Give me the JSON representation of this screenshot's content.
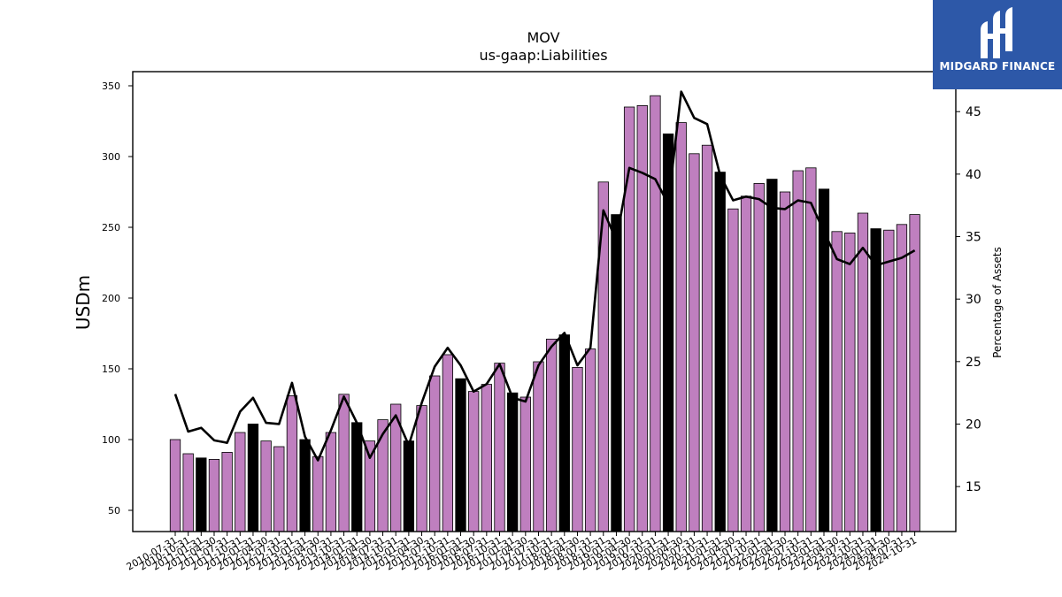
{
  "brand": {
    "name": "MIDGARD FINANCE",
    "logo_color": "#2d58a8"
  },
  "chart_data": {
    "type": "bar",
    "title": "MOV",
    "subtitle": "us-gaap:Liabilities",
    "ylabel": "USDm",
    "y2label": "Percentage of Assets",
    "ylim": [
      35,
      360
    ],
    "y2lim": [
      11.4,
      48.2
    ],
    "yticks": [
      50,
      100,
      150,
      200,
      250,
      300,
      350
    ],
    "y2ticks": [
      15,
      20,
      25,
      30,
      35,
      40,
      45
    ],
    "colors": {
      "bar": "#bf7fbf",
      "highlight": "#000000",
      "line": "#000000"
    },
    "categories": [
      "2010-07-31",
      "2010-10-31",
      "2011-01-31",
      "2011-04-30",
      "2011-07-31",
      "2011-10-31",
      "2012-01-31",
      "2012-04-30",
      "2012-07-31",
      "2012-10-31",
      "2013-01-31",
      "2013-04-30",
      "2013-07-31",
      "2013-10-31",
      "2014-01-31",
      "2014-04-30",
      "2014-07-31",
      "2014-10-31",
      "2015-01-31",
      "2015-04-30",
      "2015-07-31",
      "2015-10-31",
      "2016-01-31",
      "2016-04-30",
      "2016-07-31",
      "2016-10-31",
      "2017-01-31",
      "2017-04-30",
      "2017-07-31",
      "2017-10-31",
      "2018-01-31",
      "2018-04-30",
      "2018-07-31",
      "2018-10-31",
      "2019-01-31",
      "2019-04-30",
      "2019-07-31",
      "2019-10-31",
      "2020-01-31",
      "2020-04-30",
      "2020-07-31",
      "2020-10-31",
      "2021-01-31",
      "2021-04-30",
      "2021-07-31",
      "2021-10-31",
      "2022-01-31",
      "2022-04-30",
      "2022-07-31",
      "2022-10-31",
      "2023-01-31",
      "2023-04-30",
      "2023-07-31",
      "2023-10-31",
      "2024-01-31",
      "2024-04-30",
      "2024-07-31",
      "2024-10-31"
    ],
    "series": [
      {
        "type": "bar",
        "values": [
          100,
          90,
          87,
          86,
          91,
          105,
          111,
          99,
          95,
          131,
          100,
          88,
          105,
          132,
          112,
          99,
          114,
          125,
          99,
          124,
          145,
          160,
          143,
          134,
          139,
          154,
          133,
          130,
          155,
          171,
          174,
          151,
          164,
          282,
          259,
          335,
          336,
          343,
          316,
          324,
          302,
          308,
          289,
          263,
          272,
          281,
          284,
          275,
          290,
          292,
          277,
          247,
          246,
          260,
          249,
          248,
          252,
          259
        ],
        "highlight": [
          false,
          false,
          true,
          false,
          false,
          false,
          true,
          false,
          false,
          false,
          true,
          false,
          false,
          false,
          true,
          false,
          false,
          false,
          true,
          false,
          false,
          false,
          true,
          false,
          false,
          false,
          true,
          false,
          false,
          false,
          true,
          false,
          false,
          false,
          true,
          false,
          false,
          false,
          true,
          false,
          false,
          false,
          true,
          false,
          false,
          false,
          true,
          false,
          false,
          false,
          true,
          false,
          false,
          false,
          true,
          false,
          false,
          false
        ]
      },
      {
        "type": "line",
        "axis": "right",
        "values": [
          22.4,
          19.4,
          19.7,
          18.7,
          18.5,
          21.0,
          22.1,
          20.1,
          20.0,
          23.3,
          19.0,
          17.1,
          19.5,
          22.2,
          20.1,
          17.3,
          19.2,
          20.7,
          18.3,
          21.7,
          24.6,
          26.1,
          24.7,
          22.6,
          23.2,
          24.8,
          22.1,
          21.8,
          24.7,
          26.2,
          27.3,
          24.7,
          26.1,
          37.1,
          34.7,
          40.5,
          40.1,
          39.6,
          37.6,
          46.6,
          44.5,
          44.0,
          39.9,
          37.9,
          38.2,
          38.0,
          37.3,
          37.2,
          37.9,
          37.7,
          35.4,
          33.2,
          32.8,
          34.1,
          32.7,
          33.0,
          33.3,
          33.9
        ]
      }
    ]
  }
}
